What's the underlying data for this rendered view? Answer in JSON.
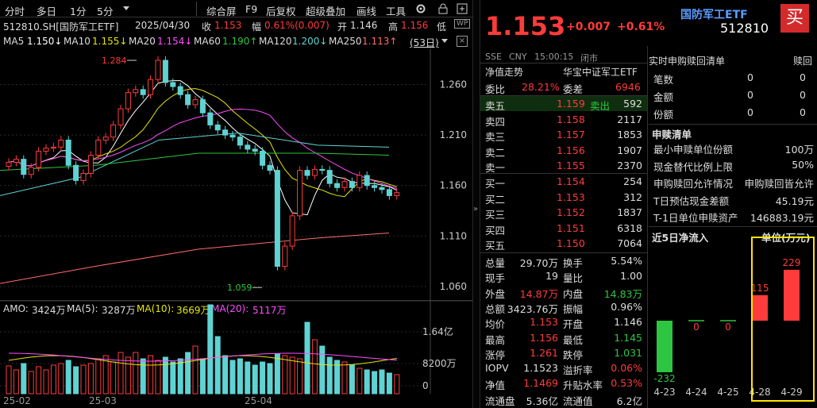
{
  "toolbar": {
    "items": [
      "分时",
      "多日",
      "1分",
      "5分",
      "综合屏",
      "F9",
      "后复权",
      "超级叠加",
      "画线",
      "工具"
    ]
  },
  "info": {
    "code_name": "512810.SH[国防军工ETF]",
    "date": "2025/04/30",
    "close_label": "收",
    "close": "1.153",
    "amp_label": "幅",
    "amp": "0.61%(0.007)",
    "open_label": "开",
    "open": "1.146",
    "high_label": "高",
    "high": "1.156",
    "low_label": "低"
  },
  "ma": {
    "ma5_label": "MA5",
    "ma5": "1.150↓",
    "ma10_label": "MA10",
    "ma10": "1.155↓",
    "ma20_label": "MA20",
    "ma20": "1.154↓",
    "ma60_label": "MA60",
    "ma60": "1.190↑",
    "ma120_label": "MA120",
    "ma120": "1.200↓",
    "ma250_label": "MA250",
    "ma250": "1.113↑",
    "days": "(53日)"
  },
  "kaxis": [
    "1.260",
    "1.210",
    "1.160",
    "1.110",
    "1.060"
  ],
  "kmarks": {
    "high": "1.284",
    "low": "1.059"
  },
  "vol": {
    "amo_label": "AMO:",
    "amo": "3424万",
    "ma5_label": "MA(5):",
    "ma5": "3287万",
    "ma10_label": "MA(10):",
    "ma10": "3669万",
    "ma20_label": "MA(20):",
    "ma20": "5117万",
    "axis": [
      "1.64亿",
      "8200万",
      "0"
    ]
  },
  "dates": [
    "25-02",
    "25-03",
    "25-04"
  ],
  "chart_data": {
    "type": "candlestick",
    "x": [
      "25-02",
      "25-03",
      "25-04"
    ],
    "price_ticks": [
      1.06,
      1.11,
      1.16,
      1.21,
      1.26
    ],
    "high": 1.284,
    "low": 1.059,
    "last": 1.153
  },
  "quote": {
    "name": "国防军工ETF",
    "code": "512810",
    "price": "1.153",
    "change": "+0.007",
    "pct": "+0.61%",
    "buy": "买",
    "market": "SSE",
    "currency": "CNY",
    "time": "15:00:15",
    "status": "闭市"
  },
  "tabs": {
    "nav": "净值走势",
    "issuer": "华宝中证军工ETF"
  },
  "weibi": {
    "l1": "委比",
    "v1": "28.21%",
    "l2": "委差",
    "v2": "6946"
  },
  "asks": [
    {
      "label": "卖五",
      "price": "1.159",
      "tag": "卖出",
      "vol": "592"
    },
    {
      "label": "卖四",
      "price": "1.158",
      "vol": "2117"
    },
    {
      "label": "卖三",
      "price": "1.157",
      "vol": "1853"
    },
    {
      "label": "卖二",
      "price": "1.156",
      "vol": "1907"
    },
    {
      "label": "卖一",
      "price": "1.155",
      "vol": "2370"
    }
  ],
  "bids": [
    {
      "label": "买一",
      "price": "1.154",
      "vol": "254"
    },
    {
      "label": "买二",
      "price": "1.153",
      "vol": "312"
    },
    {
      "label": "买三",
      "price": "1.152",
      "vol": "1837"
    },
    {
      "label": "买四",
      "price": "1.151",
      "vol": "6318"
    },
    {
      "label": "买五",
      "price": "1.150",
      "vol": "7064"
    }
  ],
  "stats": [
    {
      "l1": "总量",
      "v1": "29.70万",
      "c1": "w",
      "l2": "换手",
      "v2": "5.54%",
      "c2": "w"
    },
    {
      "l1": "现手",
      "v1": "19",
      "c1": "w",
      "l2": "量比",
      "v2": "1.00",
      "c2": "w"
    },
    {
      "l1": "外盘",
      "v1": "14.87万",
      "c1": "r",
      "l2": "内盘",
      "v2": "14.83万",
      "c2": "g"
    },
    {
      "l1": "总额",
      "v1": "3423.76万",
      "c1": "w",
      "l2": "振幅",
      "v2": "0.96%",
      "c2": "w"
    },
    {
      "l1": "均价",
      "v1": "1.153",
      "c1": "r",
      "l2": "开盘",
      "v2": "1.146",
      "c2": "w"
    },
    {
      "l1": "最高",
      "v1": "1.156",
      "c1": "r",
      "l2": "最低",
      "v2": "1.145",
      "c2": "g"
    },
    {
      "l1": "涨停",
      "v1": "1.261",
      "c1": "r",
      "l2": "跌停",
      "v2": "1.031",
      "c2": "g"
    },
    {
      "l1": "IOPV",
      "v1": "1.1523",
      "c1": "w",
      "l2": "溢折率",
      "v2": "0.06%",
      "c2": "r"
    },
    {
      "l1": "净值",
      "v1": "1.1469",
      "c1": "r",
      "l2": "升贴水率",
      "v2": "0.53%",
      "c2": "r"
    },
    {
      "l1": "流通盘",
      "v1": "5.36亿",
      "c1": "w",
      "l2": "流通值",
      "v2": "6.2亿",
      "c2": "w"
    }
  ],
  "redeem_top": {
    "partial": "实时申购赎回清单",
    "partial2": "赎回"
  },
  "redeem_rows": [
    {
      "label": "笔数",
      "v": "0"
    },
    {
      "label": "金额",
      "v": "0"
    },
    {
      "label": "份额",
      "v": "0"
    }
  ],
  "sub": {
    "title": "申赎清单",
    "rows": [
      {
        "l": "最小申赎单位份额",
        "v": "100万"
      },
      {
        "l": "现金替代比例上限",
        "v": "50%"
      },
      {
        "l": "申购赎回允许情况",
        "v": "申购赎回皆允许"
      },
      {
        "l": "T日预估现金差额",
        "v": "45.19元"
      },
      {
        "l": "T-1日单位申赎资产",
        "v": "146883.19元"
      }
    ]
  },
  "flow": {
    "title": "近5日净流入",
    "unit": "单位(万元)",
    "dates": [
      "4-23",
      "4-24",
      "4-25",
      "4-28",
      "4-29"
    ],
    "values": [
      -232,
      0,
      0,
      115,
      229
    ],
    "labels": [
      "-232",
      "0",
      "0",
      "115",
      "229"
    ]
  },
  "colors": {
    "up": "#ff3b3b",
    "down": "#2ec640",
    "ma5": "#ffffff",
    "ma10": "#e6e600",
    "ma20": "#ff4dff",
    "ma60": "#2ec640",
    "ma120": "#5fd3d3",
    "ma250": "#ff6b6b",
    "highlight": "#ffe600"
  }
}
